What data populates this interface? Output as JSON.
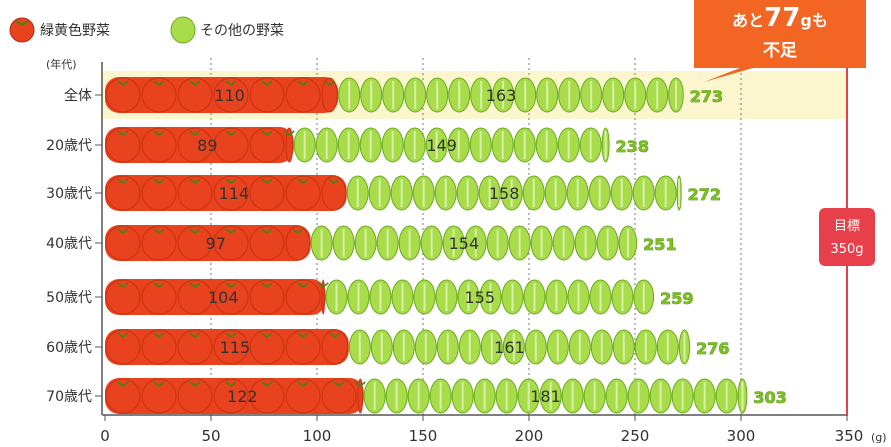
{
  "chart_data": {
    "type": "bar",
    "stacked": true,
    "orientation": "horizontal",
    "ylabel": "(年代)",
    "xunit": "(g)",
    "xlim": [
      0,
      350
    ],
    "xticks": [
      0,
      50,
      100,
      150,
      200,
      250,
      300,
      350
    ],
    "categories": [
      "全体",
      "20歳代",
      "30歳代",
      "40歳代",
      "50歳代",
      "60歳代",
      "70歳代"
    ],
    "series": [
      {
        "name": "緑黄色野菜",
        "values": [
          110,
          89,
          114,
          97,
          104,
          115,
          122
        ],
        "color": "#e8421f"
      },
      {
        "name": "その他の野菜",
        "values": [
          163,
          149,
          158,
          154,
          155,
          161,
          181
        ],
        "color": "#a9dc4a"
      }
    ],
    "totals": [
      "273",
      "238",
      "272",
      "251",
      "259",
      "276",
      "303"
    ],
    "target": {
      "value": 350,
      "label_line1": "目標",
      "label_line2": "350g",
      "color": "#e8404a"
    },
    "callout": {
      "line1_pre": "あと",
      "line1_num": "77",
      "line1_unit": "g",
      "line1_post": "も",
      "line2": "不足",
      "color": "#f26522"
    },
    "highlight_color": "#fcf6cf",
    "legend_position": "top-left"
  }
}
